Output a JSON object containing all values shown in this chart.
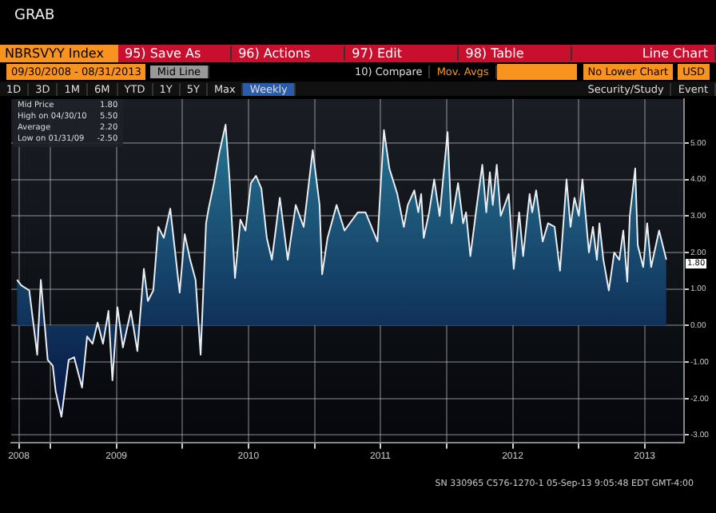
{
  "chart_data": {
    "type": "area",
    "title": "NBRSVYY Index",
    "subtitle": "09/30/2008 - 08/31/2013",
    "x": [
      "2008-09-30",
      "2008-10-12",
      "2008-11-03",
      "2008-11-25",
      "2008-12-05",
      "2008-12-24",
      "2009-01-07",
      "2009-01-15",
      "2009-01-31",
      "2009-02-20",
      "2009-03-07",
      "2009-03-29",
      "2009-04-12",
      "2009-04-27",
      "2009-05-11",
      "2009-05-26",
      "2009-06-10",
      "2009-06-21",
      "2009-07-05",
      "2009-07-20",
      "2009-08-11",
      "2009-08-29",
      "2009-09-16",
      "2009-09-27",
      "2009-10-12",
      "2009-10-26",
      "2009-11-10",
      "2009-11-28",
      "2009-12-24",
      "2010-01-07",
      "2010-01-22",
      "2010-02-06",
      "2010-02-20",
      "2010-03-07",
      "2010-03-14",
      "2010-03-29",
      "2010-04-12",
      "2010-04-30",
      "2010-05-11",
      "2010-05-26",
      "2010-06-10",
      "2010-06-24",
      "2010-07-09",
      "2010-07-23",
      "2010-08-07",
      "2010-08-22",
      "2010-09-05",
      "2010-09-27",
      "2010-10-19",
      "2010-11-10",
      "2010-12-02",
      "2010-12-27",
      "2011-01-15",
      "2011-01-22",
      "2011-02-06",
      "2011-03-03",
      "2011-03-25",
      "2011-05-01",
      "2011-05-22",
      "2011-06-24",
      "2011-07-12",
      "2011-07-27",
      "2011-08-18",
      "2011-09-05",
      "2011-09-16",
      "2011-10-04",
      "2011-10-15",
      "2011-10-23",
      "2011-10-30",
      "2011-11-14",
      "2011-11-28",
      "2011-12-13",
      "2012-01-04",
      "2012-01-15",
      "2012-02-02",
      "2012-02-16",
      "2012-02-24",
      "2012-03-07",
      "2012-03-25",
      "2012-04-09",
      "2012-04-20",
      "2012-04-30",
      "2012-05-08",
      "2012-05-19",
      "2012-05-30",
      "2012-06-21",
      "2012-07-05",
      "2012-07-20",
      "2012-07-31",
      "2012-08-18",
      "2012-08-25",
      "2012-09-05",
      "2012-09-23",
      "2012-10-08",
      "2012-10-26",
      "2012-11-10",
      "2012-11-28",
      "2012-12-09",
      "2012-12-20",
      "2013-01-01",
      "2013-01-11",
      "2013-01-29",
      "2013-02-09",
      "2013-02-20",
      "2013-02-27",
      "2013-03-10",
      "2013-03-25",
      "2013-04-09",
      "2013-04-23",
      "2013-05-04",
      "2013-05-15",
      "2013-05-22",
      "2013-06-06",
      "2013-06-13",
      "2013-06-28",
      "2013-07-09",
      "2013-07-20",
      "2013-08-11",
      "2013-08-31"
    ],
    "series": [
      {
        "color": "#2a7d99",
        "values": [
          1.25,
          1.1,
          0.96,
          -0.8,
          1.25,
          -0.94,
          -1.1,
          -1.8,
          -2.5,
          -0.94,
          -0.87,
          -1.7,
          -0.3,
          -0.5,
          0.08,
          -0.5,
          0.4,
          -1.5,
          0.5,
          -0.6,
          0.4,
          -0.7,
          1.55,
          0.67,
          0.96,
          2.7,
          2.4,
          3.2,
          0.9,
          2.5,
          1.8,
          1.25,
          -0.8,
          2.8,
          3.2,
          3.9,
          4.7,
          5.5,
          4.0,
          1.3,
          2.9,
          2.6,
          3.9,
          4.1,
          3.75,
          2.4,
          1.8,
          3.5,
          1.8,
          3.3,
          2.7,
          4.8,
          3.3,
          1.4,
          2.4,
          3.3,
          2.6,
          3.1,
          3.1,
          2.3,
          5.35,
          4.3,
          3.6,
          2.7,
          3.3,
          3.7,
          3.1,
          3.6,
          2.4,
          3.1,
          4.0,
          3.0,
          5.3,
          2.8,
          3.9,
          2.8,
          3.1,
          1.9,
          3.3,
          4.4,
          3.1,
          4.2,
          3.3,
          4.4,
          3.0,
          3.6,
          1.55,
          3.1,
          1.9,
          3.6,
          3.1,
          3.7,
          2.3,
          2.8,
          2.7,
          1.5,
          4.0,
          2.7,
          3.5,
          3.0,
          4.0,
          2.0,
          2.7,
          1.8,
          2.8,
          1.8,
          0.96,
          2.0,
          1.8,
          2.6,
          1.2,
          3.0,
          4.3,
          2.2,
          1.6,
          2.8,
          1.6,
          2.6,
          1.8
        ]
      }
    ],
    "xlim": [
      "2008-09-14",
      "2013-10-19"
    ],
    "xticks": [
      {
        "value": "2008-10-05",
        "label": "2008"
      },
      {
        "value": "2009-01-01",
        "label": null
      },
      {
        "value": "2009-07-02",
        "label": "2009"
      },
      {
        "value": "2010-01-01",
        "label": null
      },
      {
        "value": "2010-07-02",
        "label": "2010"
      },
      {
        "value": "2011-01-01",
        "label": null
      },
      {
        "value": "2011-07-02",
        "label": "2011"
      },
      {
        "value": "2012-01-01",
        "label": null
      },
      {
        "value": "2012-07-02",
        "label": "2012"
      },
      {
        "value": "2013-01-01",
        "label": null
      },
      {
        "value": "2013-07-02",
        "label": "2013"
      }
    ],
    "ylim": [
      -3.2,
      6.2
    ],
    "yticks": [
      {
        "value": -3,
        "label": "-3.00"
      },
      {
        "value": -2,
        "label": "-2.00"
      },
      {
        "value": -1,
        "label": "-1.00"
      },
      {
        "value": 0,
        "label": "0.00"
      },
      {
        "value": 1,
        "label": "1.00"
      },
      {
        "value": 2,
        "label": "2.00"
      },
      {
        "value": 3,
        "label": "3.00"
      },
      {
        "value": 4,
        "label": "4.00"
      },
      {
        "value": 5,
        "label": "5.00"
      }
    ],
    "grid": true,
    "annotations": [
      "GRAB",
      "95) Save As",
      "96) Actions",
      "97) Edit",
      "98) Table",
      "Line Chart",
      "Mid Line",
      "10) Compare",
      "Mov. Avgs",
      "No Lower Chart",
      "USD",
      "1D",
      "3D",
      "1M",
      "6M",
      "YTD",
      "1Y",
      "5Y",
      "Max",
      "Weekly",
      "Security/Study",
      "Event",
      "Mid Price",
      "1.80",
      "High on 04/30/10",
      "5.50",
      "Average",
      "2.20",
      "Low on 01/31/09",
      "-2.50",
      {
        "text": "1.80",
        "x": "2013-08-31",
        "y": 1.8
      },
      "SN 330965 C576-1270-1 05-Sep-13 9:05:48 EDT GMT-4:00"
    ]
  }
}
